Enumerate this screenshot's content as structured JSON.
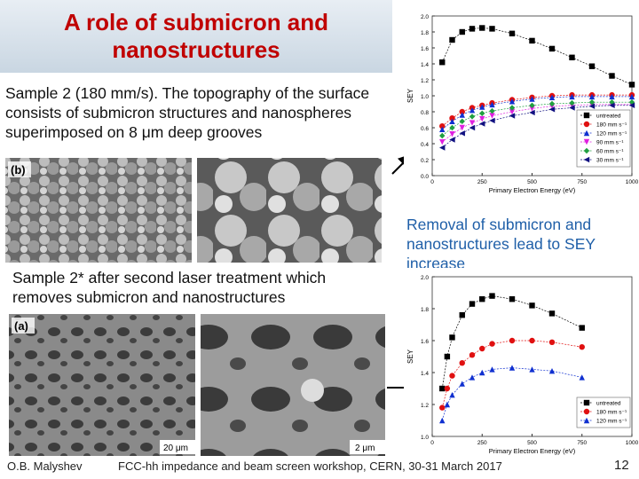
{
  "title": "A role of submicron and nanostructures",
  "text_top": "Sample 2 (180 mm/s). The topography of the surface consists of submicron structures and nanospheres superimposed on 8 μm deep grooves",
  "text_middle": "Sample 2* after second laser treatment which removes submicron and nanostructures",
  "text_right": "Removal of submicron and nanostructures lead to SEY increase",
  "images": [
    {
      "label": "(b)"
    },
    {
      "label": "(a)",
      "scale_left": "20 μm",
      "scale_right": "2 μm"
    }
  ],
  "footer": {
    "author": "O.B. Malyshev",
    "event": "FCC-hh impedance and beam screen workshop, CERN, 30-31 March 2017",
    "page": "12"
  },
  "charts": [
    {
      "type": "line",
      "xlabel": "Primary Electron Energy (eV)",
      "ylabel": "SEY",
      "xlim": [
        0,
        1000
      ],
      "xticks": [
        0,
        250,
        500,
        750,
        1000
      ],
      "ylim": [
        0,
        2
      ],
      "yticks": [
        {
          "value": 0,
          "label": "0.0"
        },
        0.2,
        0.4,
        0.6,
        0.8,
        {
          "value": 1,
          "label": "1.0"
        },
        1.2,
        1.4,
        1.6,
        1.8,
        {
          "value": 2,
          "label": "2.0"
        }
      ],
      "x": [
        50,
        100,
        150,
        200,
        250,
        300,
        400,
        500,
        600,
        700,
        800,
        900,
        1000
      ],
      "series": [
        {
          "name": "untreated",
          "color": "#000000",
          "marker": "square",
          "values": [
            1.42,
            1.7,
            1.8,
            1.84,
            1.85,
            1.84,
            1.78,
            1.69,
            1.59,
            1.48,
            1.37,
            1.25,
            1.14
          ]
        },
        {
          "name": "180 mm s⁻¹",
          "color": "#e01010",
          "marker": "circle",
          "values": [
            0.62,
            0.72,
            0.8,
            0.85,
            0.88,
            0.91,
            0.95,
            0.98,
            1.0,
            1.01,
            1.01,
            1.01,
            1.01
          ]
        },
        {
          "name": "120 mm s⁻¹",
          "color": "#1030d0",
          "marker": "triangle",
          "values": [
            0.58,
            0.68,
            0.76,
            0.82,
            0.86,
            0.89,
            0.93,
            0.96,
            0.98,
            0.99,
            0.99,
            0.99,
            0.99
          ]
        },
        {
          "name": "90 mm s⁻¹",
          "color": "#e020e0",
          "marker": "triangle-down",
          "values": [
            0.42,
            0.52,
            0.6,
            0.66,
            0.71,
            0.75,
            0.8,
            0.84,
            0.87,
            0.88,
            0.89,
            0.89,
            0.89
          ]
        },
        {
          "name": "60 mm s⁻¹",
          "color": "#20a040",
          "marker": "diamond",
          "values": [
            0.5,
            0.6,
            0.68,
            0.74,
            0.78,
            0.81,
            0.85,
            0.88,
            0.9,
            0.91,
            0.92,
            0.92,
            0.92
          ]
        },
        {
          "name": "30 mm s⁻¹",
          "color": "#101080",
          "marker": "triangle-left",
          "values": [
            0.35,
            0.45,
            0.53,
            0.6,
            0.65,
            0.69,
            0.75,
            0.79,
            0.83,
            0.85,
            0.87,
            0.88,
            0.88
          ]
        }
      ]
    },
    {
      "type": "line",
      "xlabel": "Primary Electron Energy (eV)",
      "ylabel": "SEY",
      "xlim": [
        0,
        1000
      ],
      "xticks": [
        0,
        250,
        500,
        750,
        1000
      ],
      "ylim": [
        1,
        2
      ],
      "yticks": [
        {
          "value": 1,
          "label": "1.0"
        },
        1.2,
        1.4,
        1.6,
        1.8,
        {
          "value": 2,
          "label": "2.0"
        }
      ],
      "x": [
        50,
        75,
        100,
        150,
        200,
        250,
        300,
        400,
        500,
        600,
        750
      ],
      "series": [
        {
          "name": "untreated",
          "color": "#000000",
          "marker": "square",
          "values": [
            1.3,
            1.5,
            1.62,
            1.76,
            1.83,
            1.86,
            1.88,
            1.86,
            1.82,
            1.77,
            1.68
          ]
        },
        {
          "name": "180 mm s⁻¹",
          "color": "#e01010",
          "marker": "circle",
          "values": [
            1.18,
            1.3,
            1.38,
            1.46,
            1.51,
            1.55,
            1.58,
            1.6,
            1.6,
            1.59,
            1.56
          ]
        },
        {
          "name": "120 mm s⁻¹",
          "color": "#1030d0",
          "marker": "triangle",
          "values": [
            1.1,
            1.2,
            1.26,
            1.33,
            1.37,
            1.4,
            1.42,
            1.43,
            1.42,
            1.41,
            1.37
          ]
        }
      ]
    }
  ]
}
